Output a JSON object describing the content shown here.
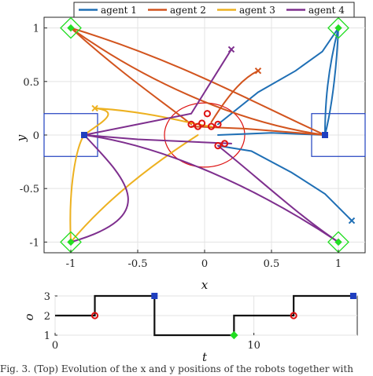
{
  "caption": "Fig. 3.   (Top) Evolution of the x and y positions of the robots together with",
  "colors": {
    "agent1": "#1f6fb5",
    "agent2": "#d2541e",
    "agent3": "#edb120",
    "agent4": "#7e2f8e",
    "start_square": "#1f3fbf",
    "goal_diamond": "#22dd22",
    "collision_circle": "#dd1111",
    "mode_line": "#111111"
  },
  "chart_data": [
    {
      "type": "line",
      "subtype": "trajectory",
      "xlabel": "x",
      "ylabel": "y",
      "xlim": [
        -1.2,
        1.2
      ],
      "ylim": [
        -1.1,
        1.1
      ],
      "xticks": [
        -1,
        -0.5,
        0,
        0.5,
        1
      ],
      "xtick_labels": [
        "-1",
        "-0.5",
        "0",
        "0.5",
        "1"
      ],
      "yticks": [
        -1,
        -0.5,
        0,
        0.5,
        1
      ],
      "ytick_labels": [
        "-1",
        "-0.5",
        "0",
        "0.5",
        "1"
      ],
      "grid": true,
      "legend": "top",
      "legend_entries": [
        "agent 1",
        "agent 2",
        "agent 3",
        "agent 4"
      ],
      "regions": [
        {
          "kind": "rectangle",
          "x": [
            -1.2,
            -0.8
          ],
          "y": [
            -0.2,
            0.2
          ]
        },
        {
          "kind": "rectangle",
          "x": [
            0.8,
            1.2
          ],
          "y": [
            -0.2,
            0.2
          ]
        },
        {
          "kind": "circle",
          "center": [
            0,
            0
          ],
          "radius": 0.3
        }
      ],
      "goals": [
        [
          -1,
          1
        ],
        [
          1,
          1
        ],
        [
          -1,
          -1
        ],
        [
          1,
          -1
        ]
      ],
      "series": [
        {
          "name": "agent 1",
          "color_key": "agent1",
          "lines": [
            [
              [
                0.9,
                0
              ],
              [
                0.96,
                0.3
              ],
              [
                0.99,
                0.7
              ],
              [
                1,
                1
              ]
            ],
            [
              [
                0.1,
                0.1
              ],
              [
                0.4,
                0.4
              ],
              [
                0.68,
                0.6
              ],
              [
                0.88,
                0.78
              ],
              [
                1,
                1
              ]
            ],
            [
              [
                0.9,
                0
              ],
              [
                0.9,
                0.3
              ],
              [
                0.92,
                0.6
              ],
              [
                1,
                1
              ]
            ],
            [
              [
                0.1,
                -0.1
              ],
              [
                0.35,
                -0.15
              ],
              [
                0.65,
                -0.35
              ],
              [
                0.9,
                -0.55
              ],
              [
                1.1,
                -0.8
              ]
            ],
            [
              [
                0.1,
                0
              ],
              [
                0.5,
                0.02
              ],
              [
                0.9,
                0
              ]
            ]
          ]
        },
        {
          "name": "agent 2",
          "color_key": "agent2",
          "lines": [
            [
              [
                -1,
                1
              ],
              [
                -0.5,
                0.55
              ],
              [
                0.2,
                0.12
              ],
              [
                0.9,
                0
              ]
            ],
            [
              [
                0.9,
                0
              ],
              [
                0.4,
                0.28
              ],
              [
                -0.2,
                0.7
              ],
              [
                -1,
                1
              ]
            ],
            [
              [
                -1,
                1
              ],
              [
                -0.6,
                0.55
              ],
              [
                -0.3,
                0.3
              ],
              [
                -0.1,
                0.1
              ]
            ],
            [
              [
                0.05,
                0.12
              ],
              [
                0.2,
                0.42
              ],
              [
                0.3,
                0.54
              ],
              [
                0.4,
                0.6
              ]
            ],
            [
              [
                -0.1,
                0.08
              ],
              [
                0.3,
                0.06
              ],
              [
                0.9,
                0
              ]
            ]
          ]
        },
        {
          "name": "agent 3",
          "color_key": "agent3",
          "lines": [
            [
              [
                -1,
                -1
              ],
              [
                -1.02,
                -0.5
              ],
              [
                -0.96,
                -0.1
              ],
              [
                -0.9,
                0
              ]
            ],
            [
              [
                -1,
                -1
              ],
              [
                -0.7,
                -0.55
              ],
              [
                -0.3,
                -0.2
              ],
              [
                -0.05,
                0
              ]
            ],
            [
              [
                -0.9,
                0
              ],
              [
                -0.8,
                0.1
              ],
              [
                -0.6,
                0.22
              ],
              [
                -0.82,
                0.25
              ]
            ],
            [
              [
                -0.82,
                0.25
              ],
              [
                -0.4,
                0.22
              ],
              [
                -0.1,
                0.1
              ],
              [
                0.05,
                0.08
              ]
            ]
          ]
        },
        {
          "name": "agent 4",
          "color_key": "agent4",
          "lines": [
            [
              [
                -0.9,
                0
              ],
              [
                -0.3,
                -0.1
              ],
              [
                0.4,
                -0.5
              ],
              [
                1,
                -1
              ]
            ],
            [
              [
                -0.9,
                0
              ],
              [
                -0.6,
                -0.4
              ],
              [
                -0.3,
                -0.75
              ],
              [
                -1,
                -1
              ]
            ],
            [
              [
                0.1,
                -0.1
              ],
              [
                0.4,
                -0.4
              ],
              [
                0.7,
                -0.75
              ],
              [
                1,
                -1
              ]
            ],
            [
              [
                -0.9,
                0
              ],
              [
                -0.5,
                0.1
              ],
              [
                -0.1,
                0.2
              ],
              [
                0.05,
                0.5
              ],
              [
                0.2,
                0.8
              ]
            ],
            [
              [
                -0.9,
                0
              ],
              [
                -0.5,
                -0.04
              ],
              [
                0.2,
                -0.08
              ]
            ]
          ]
        }
      ],
      "end_markers": [
        {
          "agent": "agent 1",
          "x": 1.1,
          "y": -0.8
        },
        {
          "agent": "agent 2",
          "x": 0.4,
          "y": 0.6
        },
        {
          "agent": "agent 3",
          "x": -0.82,
          "y": 0.25
        },
        {
          "agent": "agent 4",
          "x": 0.2,
          "y": 0.8
        }
      ],
      "collision_points": [
        [
          0.02,
          0.2
        ],
        [
          0.1,
          0.1
        ],
        [
          -0.1,
          0.1
        ],
        [
          -0.02,
          0.11
        ],
        [
          -0.05,
          0.08
        ],
        [
          0.05,
          0.08
        ],
        [
          0.15,
          -0.08
        ],
        [
          0.1,
          -0.1
        ]
      ],
      "start_points": [
        [
          -0.9,
          0
        ],
        [
          0.9,
          0
        ]
      ]
    },
    {
      "type": "line",
      "subtype": "step",
      "xlabel": "t",
      "ylabel": "o",
      "xlim": [
        0,
        15.2
      ],
      "ylim": [
        1,
        3
      ],
      "xticks": [
        0,
        10
      ],
      "xtick_labels": [
        "0",
        "10"
      ],
      "yticks": [
        1,
        2,
        3
      ],
      "ytick_labels": [
        "1",
        "2",
        "3"
      ],
      "grid": true,
      "x": [
        0,
        2,
        2,
        5,
        5,
        9,
        9,
        12,
        12,
        15
      ],
      "y": [
        2,
        2,
        3,
        3,
        1,
        1,
        2,
        2,
        3,
        3
      ],
      "markers": [
        {
          "x": 2,
          "y": 2,
          "kind": "circle",
          "color_key": "collision_circle"
        },
        {
          "x": 5,
          "y": 3,
          "kind": "square",
          "color_key": "start_square"
        },
        {
          "x": 9,
          "y": 1,
          "kind": "diamond",
          "color_key": "goal_diamond"
        },
        {
          "x": 12,
          "y": 2,
          "kind": "circle",
          "color_key": "collision_circle"
        },
        {
          "x": 15,
          "y": 3,
          "kind": "square",
          "color_key": "start_square"
        }
      ]
    }
  ]
}
